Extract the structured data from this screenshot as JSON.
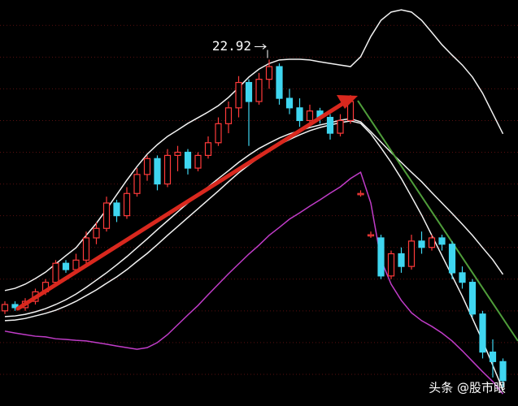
{
  "chart_data": {
    "type": "candlestick",
    "categories": [
      null,
      null,
      null,
      null,
      null,
      null,
      null,
      null,
      null,
      null,
      null,
      null,
      null,
      null,
      null,
      null,
      null,
      null,
      null,
      null,
      null,
      null,
      null,
      null,
      null,
      null,
      null,
      null,
      null,
      null,
      null,
      null,
      null,
      null,
      null,
      null,
      null,
      null,
      null,
      null,
      null,
      null,
      null,
      null,
      null,
      null,
      null,
      null,
      null,
      null
    ],
    "open": [
      15.0,
      15.2,
      15.1,
      15.3,
      15.6,
      15.9,
      16.5,
      16.3,
      16.6,
      17.3,
      17.6,
      18.4,
      18.0,
      18.7,
      19.3,
      19.8,
      19.0,
      19.9,
      20.0,
      19.5,
      19.9,
      20.3,
      20.9,
      21.4,
      22.2,
      21.6,
      22.3,
      22.7,
      21.7,
      21.4,
      21.0,
      21.3,
      21.1,
      20.6,
      21.0,
      18.7,
      17.4,
      17.3,
      16.1,
      16.8,
      16.4,
      17.2,
      17.0,
      17.3,
      17.1,
      16.2,
      15.9,
      14.9,
      13.7,
      13.4
    ],
    "high": [
      15.3,
      15.3,
      15.4,
      15.7,
      16.0,
      16.6,
      16.6,
      16.8,
      17.5,
      17.8,
      18.6,
      18.5,
      18.9,
      19.5,
      19.9,
      19.9,
      20.1,
      20.2,
      20.1,
      20.0,
      20.5,
      21.1,
      21.6,
      22.4,
      22.3,
      22.5,
      22.92,
      22.8,
      22.0,
      21.7,
      21.5,
      21.4,
      21.2,
      21.2,
      21.8,
      18.8,
      17.5,
      17.4,
      16.9,
      17.0,
      17.4,
      17.5,
      17.4,
      17.4,
      17.2,
      16.4,
      16.0,
      15.0,
      14.1,
      13.5
    ],
    "low": [
      14.9,
      15.0,
      15.0,
      15.2,
      15.5,
      15.8,
      16.2,
      16.2,
      16.5,
      17.1,
      17.5,
      17.8,
      17.9,
      18.6,
      19.1,
      18.8,
      18.9,
      19.4,
      19.3,
      19.4,
      19.8,
      20.2,
      20.6,
      21.1,
      20.2,
      21.5,
      22.0,
      21.5,
      21.2,
      20.8,
      20.9,
      20.9,
      20.4,
      20.5,
      20.9,
      18.6,
      17.3,
      16.0,
      16.0,
      16.2,
      16.3,
      16.8,
      16.9,
      16.9,
      16.0,
      15.7,
      14.8,
      13.5,
      12.9,
      12.6
    ],
    "close": [
      15.2,
      15.1,
      15.3,
      15.6,
      15.9,
      16.5,
      16.3,
      16.6,
      17.3,
      17.6,
      18.4,
      18.0,
      18.7,
      19.3,
      19.8,
      19.0,
      19.9,
      20.0,
      19.5,
      19.9,
      20.3,
      20.9,
      21.4,
      22.2,
      21.6,
      22.3,
      22.7,
      21.7,
      21.4,
      21.0,
      21.3,
      21.1,
      20.6,
      21.0,
      21.6,
      18.7,
      17.4,
      16.1,
      16.8,
      16.4,
      17.2,
      17.0,
      17.3,
      17.1,
      16.2,
      15.9,
      14.9,
      13.7,
      13.4,
      12.8
    ],
    "up_color": "#ff3a3a",
    "down_color": "#3fd6f0",
    "series": [
      {
        "color": "#f2f2f2",
        "values": [
          15.64,
          15.71,
          15.84,
          16.02,
          16.22,
          16.48,
          16.74,
          16.99,
          17.38,
          17.76,
          18.2,
          18.66,
          19.12,
          19.55,
          19.94,
          20.24,
          20.5,
          20.7,
          20.91,
          21.09,
          21.27,
          21.47,
          21.73,
          22.04,
          22.37,
          22.62,
          22.8,
          22.91,
          22.93,
          22.93,
          22.91,
          22.85,
          22.8,
          22.75,
          22.7,
          23.01,
          23.65,
          24.16,
          24.42,
          24.49,
          24.42,
          24.16,
          23.78,
          23.39,
          23.06,
          22.75,
          22.37,
          21.86,
          21.22,
          20.58
        ]
      },
      {
        "color": "#f2f2f2",
        "values": [
          14.82,
          14.84,
          14.89,
          14.97,
          15.07,
          15.2,
          15.35,
          15.53,
          15.74,
          15.97,
          16.2,
          16.45,
          16.71,
          16.99,
          17.27,
          17.56,
          17.84,
          18.12,
          18.4,
          18.66,
          18.91,
          19.17,
          19.42,
          19.68,
          19.91,
          20.12,
          20.29,
          20.45,
          20.58,
          20.68,
          20.78,
          20.86,
          20.93,
          21.01,
          21.06,
          20.96,
          20.65,
          20.32,
          19.99,
          19.68,
          19.37,
          19.07,
          18.73,
          18.4,
          18.07,
          17.73,
          17.38,
          16.99,
          16.61,
          16.15
        ]
      },
      {
        "color": "#f2f2f2",
        "values": [
          14.69,
          14.71,
          14.76,
          14.84,
          14.92,
          15.02,
          15.15,
          15.3,
          15.48,
          15.66,
          15.87,
          16.07,
          16.3,
          16.56,
          16.81,
          17.09,
          17.38,
          17.66,
          17.94,
          18.22,
          18.5,
          18.78,
          19.07,
          19.35,
          19.6,
          19.83,
          20.04,
          20.24,
          20.4,
          20.55,
          20.68,
          20.78,
          20.86,
          20.93,
          20.99,
          20.91,
          20.58,
          20.14,
          19.68,
          19.17,
          18.6,
          18.02,
          17.38,
          16.74,
          16.1,
          15.46,
          14.76,
          14.05,
          13.28,
          12.51
        ]
      },
      {
        "color": "#c03cc8",
        "values": [
          14.36,
          14.3,
          14.25,
          14.2,
          14.18,
          14.12,
          14.1,
          14.07,
          14.05,
          14.0,
          13.95,
          13.89,
          13.84,
          13.79,
          13.84,
          14.0,
          14.25,
          14.56,
          14.87,
          15.17,
          15.51,
          15.84,
          16.17,
          16.48,
          16.79,
          17.07,
          17.38,
          17.63,
          17.89,
          18.09,
          18.3,
          18.5,
          18.71,
          18.91,
          19.17,
          19.37,
          18.4,
          16.61,
          15.84,
          15.33,
          14.94,
          14.69,
          14.51,
          14.3,
          14.05,
          13.74,
          13.41,
          13.08,
          12.77,
          12.38
        ]
      }
    ],
    "ylim": [
      12,
      24.8
    ],
    "yticks": [
      13,
      14,
      15,
      16,
      17,
      18,
      19,
      20,
      21,
      22,
      23,
      24
    ],
    "grid": true,
    "high_label": 22.92,
    "watermark": "头条 @股市眼"
  }
}
